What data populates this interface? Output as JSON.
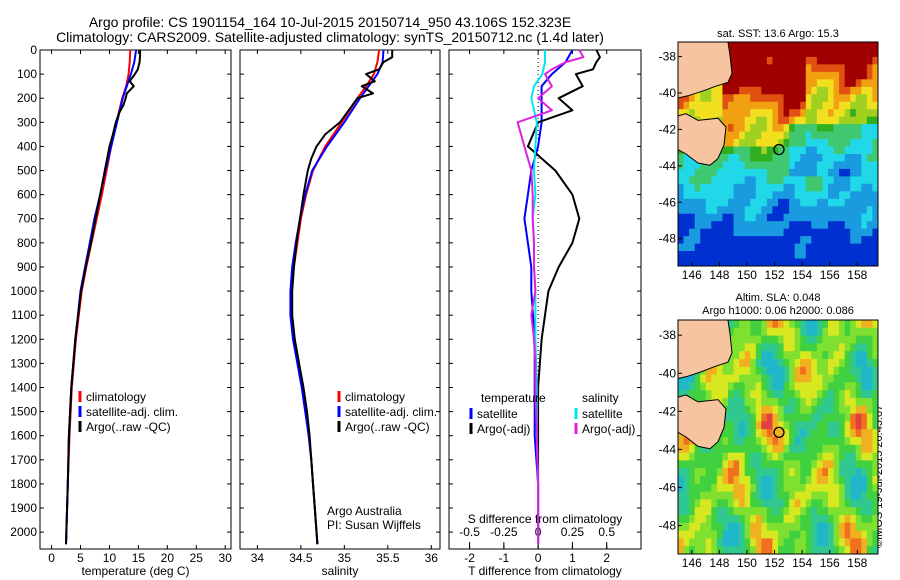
{
  "header": {
    "title_line1": "Argo profile: CS 1901154_164 10-Jul-2015 20150714_950 43.106S 152.323E",
    "title_line2": "Climatology: CARS2009. Satellite-adjusted climatology: synTS_20150712.nc (1.4d later)"
  },
  "stamp": "©IMOS 19-Jul-2015 20:43:07",
  "colors": {
    "climatology": "#ff0000",
    "satellite": "#0000ff",
    "argo": "#000000",
    "sal_satellite": "#00e5ee",
    "sal_argo": "#e020e0",
    "land": "#f7c4a0"
  },
  "chart_data": [
    {
      "type": "line",
      "panel": "temperature",
      "xlabel": "temperature (deg C)",
      "xlim": [
        -2,
        31
      ],
      "xticks": [
        0,
        5,
        10,
        15,
        20,
        25,
        30
      ],
      "ylim": [
        2070,
        0
      ],
      "yticks": [
        0,
        100,
        200,
        300,
        400,
        500,
        600,
        700,
        800,
        900,
        1000,
        1100,
        1200,
        1300,
        1400,
        1500,
        1600,
        1700,
        1800,
        1900,
        2000
      ],
      "legend": [
        "climatology",
        "satellite-adj. clim.",
        "Argo(..raw -QC)"
      ],
      "series": [
        {
          "name": "climatology",
          "color": "#ff0000",
          "depth": [
            0,
            50,
            100,
            150,
            200,
            300,
            400,
            500,
            600,
            700,
            800,
            900,
            1000,
            1200,
            1400,
            1600,
            1800,
            2050
          ],
          "values": [
            13.6,
            13.5,
            13.3,
            12.9,
            12.2,
            11.2,
            10.3,
            9.5,
            8.7,
            7.8,
            6.9,
            6.0,
            5.2,
            4.2,
            3.5,
            3.1,
            2.8,
            2.5
          ]
        },
        {
          "name": "satellite-adj. clim.",
          "color": "#0000ff",
          "depth": [
            0,
            50,
            100,
            150,
            200,
            300,
            400,
            500,
            600,
            700,
            800,
            900,
            1000,
            1200,
            1400,
            1600,
            1800,
            2050
          ],
          "values": [
            14.6,
            14.3,
            13.7,
            13.0,
            12.3,
            11.3,
            10.3,
            9.3,
            8.4,
            7.4,
            6.6,
            5.8,
            5.0,
            4.1,
            3.4,
            3.0,
            2.8,
            2.5
          ]
        },
        {
          "name": "Argo(..raw -QC)",
          "color": "#000000",
          "depth": [
            0,
            20,
            50,
            80,
            100,
            130,
            150,
            180,
            200,
            230,
            260,
            300,
            350,
            400,
            500,
            600,
            700,
            800,
            900,
            1000,
            1200,
            1400,
            1600,
            1800,
            2050
          ],
          "values": [
            15.3,
            15.3,
            15.2,
            14.9,
            14.4,
            13.5,
            14.2,
            13.0,
            12.8,
            12.4,
            11.7,
            11.1,
            10.6,
            10.0,
            9.2,
            8.4,
            7.6,
            6.8,
            5.9,
            5.1,
            4.1,
            3.4,
            3.0,
            2.8,
            2.5
          ]
        }
      ]
    },
    {
      "type": "line",
      "panel": "salinity",
      "xlabel": "salinity",
      "xlim": [
        33.8,
        36.1
      ],
      "xticks": [
        34,
        34.5,
        35,
        35.5,
        36
      ],
      "ylim": [
        2070,
        0
      ],
      "legend": [
        "climatology",
        "satellite-adj. clim.",
        "Argo(..raw -QC)"
      ],
      "annotation": [
        "Argo Australia",
        "PI: Susan Wijffels"
      ],
      "series": [
        {
          "name": "climatology",
          "color": "#ff0000",
          "depth": [
            0,
            50,
            100,
            150,
            200,
            300,
            400,
            500,
            600,
            700,
            800,
            900,
            1000,
            1100,
            1200,
            1300,
            1400,
            1500,
            1600,
            1700,
            1800,
            1900,
            2050
          ],
          "values": [
            35.4,
            35.38,
            35.34,
            35.25,
            35.15,
            34.97,
            34.78,
            34.64,
            34.56,
            34.5,
            34.46,
            34.42,
            34.39,
            34.39,
            34.42,
            34.47,
            34.52,
            34.56,
            34.59,
            34.62,
            34.64,
            34.66,
            34.69
          ]
        },
        {
          "name": "satellite-adj. clim.",
          "color": "#0000ff",
          "depth": [
            0,
            50,
            100,
            150,
            200,
            300,
            400,
            500,
            600,
            700,
            800,
            900,
            1000,
            1100,
            1200,
            1300,
            1400,
            1500,
            1600,
            1700,
            1800,
            1900,
            2050
          ],
          "values": [
            35.45,
            35.44,
            35.38,
            35.28,
            35.18,
            35.0,
            34.8,
            34.63,
            34.55,
            34.49,
            34.44,
            34.4,
            34.38,
            34.38,
            34.41,
            34.46,
            34.51,
            34.55,
            34.59,
            34.62,
            34.64,
            34.66,
            34.69
          ]
        },
        {
          "name": "Argo(..raw -QC)",
          "color": "#000000",
          "depth": [
            0,
            30,
            50,
            80,
            100,
            130,
            150,
            180,
            200,
            250,
            300,
            350,
            400,
            450,
            500,
            600,
            700,
            800,
            900,
            1000,
            1100,
            1200,
            1300,
            1400,
            1500,
            1600,
            1700,
            1800,
            1900,
            2050
          ],
          "values": [
            35.55,
            35.55,
            35.45,
            35.4,
            35.25,
            35.35,
            35.2,
            35.33,
            35.15,
            35.05,
            34.95,
            34.78,
            34.68,
            34.62,
            34.58,
            34.53,
            34.49,
            34.45,
            34.42,
            34.4,
            34.4,
            34.43,
            34.48,
            34.53,
            34.57,
            34.6,
            34.62,
            34.64,
            34.66,
            34.69
          ]
        }
      ]
    },
    {
      "type": "line",
      "panel": "difference",
      "xlabel": "T difference from climatology",
      "xlabel_top": "S difference from climatology",
      "xlim": [
        -2.6,
        3.0
      ],
      "xticks": [
        -2,
        -1,
        0,
        1,
        2
      ],
      "xticks_top": [
        -0.5,
        -0.25,
        0,
        0.25,
        0.5
      ],
      "ylim": [
        2070,
        0
      ],
      "legend_temperature_title": "temperature",
      "legend_salinity_title": "salinity",
      "legend_temperature": [
        "satellite",
        "Argo(-adj)"
      ],
      "legend_salinity": [
        "satellite",
        "Argo(-adj)"
      ],
      "series": [
        {
          "name": "temperature satellite",
          "color": "#0000ff",
          "depth": [
            0,
            50,
            100,
            150,
            200,
            300,
            400,
            500,
            600,
            700,
            800,
            900,
            1000,
            1200,
            1400,
            1600,
            1800,
            2050
          ],
          "values": [
            1.0,
            0.8,
            0.4,
            0.1,
            0.1,
            0.1,
            0.0,
            -0.2,
            -0.3,
            -0.4,
            -0.3,
            -0.2,
            -0.2,
            -0.1,
            -0.1,
            -0.1,
            0.0,
            0.0
          ]
        },
        {
          "name": "temperature Argo(-adj)",
          "color": "#000000",
          "depth": [
            0,
            30,
            50,
            80,
            100,
            150,
            200,
            250,
            300,
            400,
            500,
            600,
            700,
            800,
            900,
            1000,
            1200,
            1400,
            1600,
            1800,
            2050
          ],
          "values": [
            1.7,
            1.8,
            1.7,
            1.6,
            1.1,
            1.3,
            0.6,
            1.0,
            0.0,
            -0.3,
            0.5,
            1.0,
            1.2,
            1.0,
            0.6,
            0.3,
            0.1,
            0.0,
            0.0,
            0.0,
            0.0
          ]
        },
        {
          "name": "salinity satellite",
          "color": "#00e5ee",
          "depth": [
            0,
            50,
            100,
            150,
            200,
            300,
            400,
            500,
            600,
            700,
            800,
            900,
            1000,
            1200,
            1400,
            1600,
            1800,
            2050
          ],
          "values": [
            0.05,
            0.05,
            0.03,
            -0.03,
            -0.05,
            -0.01,
            -0.02,
            -0.03,
            -0.02,
            -0.04,
            -0.03,
            -0.03,
            -0.02,
            -0.02,
            -0.01,
            -0.01,
            0.0,
            0.0
          ]
        },
        {
          "name": "salinity Argo(-adj)",
          "color": "#e020e0",
          "depth": [
            0,
            30,
            50,
            80,
            100,
            150,
            200,
            250,
            300,
            400,
            500,
            600,
            700,
            800,
            900,
            1000,
            1100,
            1200,
            1300,
            1400,
            1600,
            1800,
            2050
          ],
          "values": [
            0.3,
            0.33,
            0.2,
            0.1,
            0.05,
            0.1,
            0.0,
            0.1,
            -0.15,
            -0.1,
            -0.05,
            -0.04,
            -0.04,
            -0.03,
            -0.03,
            -0.02,
            -0.05,
            -0.03,
            -0.02,
            -0.02,
            -0.01,
            0.0,
            0.0
          ]
        }
      ]
    },
    {
      "type": "heatmap",
      "panel": "sst-map",
      "title": "sat. SST: 13.6  Argo: 15.3",
      "xticks": [
        146,
        148,
        150,
        152,
        154,
        156,
        158
      ],
      "yticks": [
        -38,
        -40,
        -42,
        -44,
        -46,
        -48
      ],
      "xlim": [
        145,
        159.5
      ],
      "ylim": [
        -49.5,
        -37.2
      ],
      "argo_position": {
        "lon": 152.323,
        "lat": -43.106
      }
    },
    {
      "type": "heatmap",
      "panel": "sla-map",
      "title": "Altim. SLA: 0.048",
      "subtitle": "Argo h1000: 0.06 h2000: 0.086",
      "xticks": [
        146,
        148,
        150,
        152,
        154,
        156,
        158
      ],
      "yticks": [
        -38,
        -40,
        -42,
        -44,
        -46,
        -48
      ],
      "xlim": [
        145,
        159.5
      ],
      "ylim": [
        -49.5,
        -37.2
      ],
      "argo_position": {
        "lon": 152.323,
        "lat": -43.106
      }
    }
  ]
}
